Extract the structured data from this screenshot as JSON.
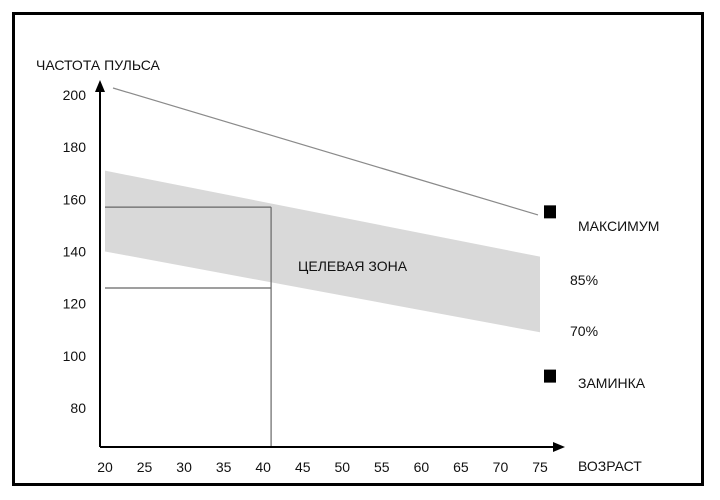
{
  "chart_data": {
    "type": "area",
    "ylabel": "ЧАСТОТА ПУЛЬСА",
    "xlabel": "ВОЗРАСТ",
    "x_ticks": [
      "20",
      "25",
      "30",
      "35",
      "40",
      "45",
      "50",
      "55",
      "60",
      "65",
      "70",
      "75"
    ],
    "y_ticks": [
      "80",
      "100",
      "120",
      "140",
      "160",
      "180",
      "200"
    ],
    "x_tick_values": [
      20,
      25,
      30,
      35,
      40,
      45,
      50,
      55,
      60,
      65,
      70,
      75
    ],
    "y_tick_values": [
      80,
      100,
      120,
      140,
      160,
      180,
      200
    ],
    "xlim": [
      20,
      75
    ],
    "ylim": [
      65,
      205
    ],
    "grid": false,
    "legend_position": "right",
    "series": [
      {
        "name": "МАКСИМУМ",
        "kind": "line",
        "x": [
          20,
          75
        ],
        "y": [
          205,
          154
        ]
      },
      {
        "name": "85%",
        "kind": "band-upper",
        "x": [
          20,
          75
        ],
        "y": [
          171,
          138
        ]
      },
      {
        "name": "70%",
        "kind": "band-lower",
        "x": [
          20,
          75
        ],
        "y": [
          140,
          109
        ]
      }
    ],
    "target_zone_label": "ЦЕЛЕВАЯ ЗОНА",
    "reference_box": {
      "x": [
        20,
        41
      ],
      "y": [
        126,
        157
      ]
    },
    "legend": {
      "max": "МАКСИМУМ",
      "p85": "85%",
      "p70": "70%",
      "cooldown": "ЗАМИНКА"
    },
    "markers": [
      {
        "label": "МАКСИМУМ",
        "x": 75,
        "y": 155
      },
      {
        "label": "ЗАМИНКА",
        "x": 75,
        "y": 92
      }
    ],
    "colors": {
      "band": "#d9d9d9",
      "line": "#8a8a8a",
      "axis": "#000000",
      "marker": "#000000"
    }
  }
}
